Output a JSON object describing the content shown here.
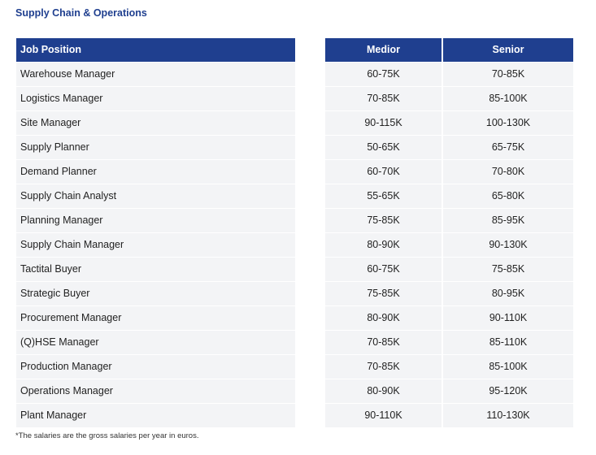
{
  "title": "Supply Chain & Operations",
  "columns": {
    "position": "Job Position",
    "medior": "Medior",
    "senior": "Senior"
  },
  "rows": [
    {
      "position": "Warehouse Manager",
      "medior": "60-75K",
      "senior": "70-85K"
    },
    {
      "position": "Logistics Manager",
      "medior": "70-85K",
      "senior": "85-100K"
    },
    {
      "position": "Site Manager",
      "medior": "90-115K",
      "senior": "100-130K"
    },
    {
      "position": "Supply Planner",
      "medior": "50-65K",
      "senior": "65-75K"
    },
    {
      "position": "Demand Planner",
      "medior": "60-70K",
      "senior": "70-80K"
    },
    {
      "position": "Supply Chain Analyst",
      "medior": "55-65K",
      "senior": "65-80K"
    },
    {
      "position": "Planning Manager",
      "medior": "75-85K",
      "senior": "85-95K"
    },
    {
      "position": "Supply Chain Manager",
      "medior": "80-90K",
      "senior": "90-130K"
    },
    {
      "position": "Tactital Buyer",
      "medior": "60-75K",
      "senior": "75-85K"
    },
    {
      "position": "Strategic Buyer",
      "medior": "75-85K",
      "senior": "80-95K"
    },
    {
      "position": "Procurement Manager",
      "medior": "80-90K",
      "senior": "90-110K"
    },
    {
      "position": "(Q)HSE Manager",
      "medior": "70-85K",
      "senior": "85-110K"
    },
    {
      "position": "Production Manager",
      "medior": "70-85K",
      "senior": "85-100K"
    },
    {
      "position": "Operations Manager",
      "medior": "80-90K",
      "senior": "95-120K"
    },
    {
      "position": "Plant Manager",
      "medior": "90-110K",
      "senior": "110-130K"
    }
  ],
  "footnote": "*The salaries are the gross salaries per year in euros.",
  "colors": {
    "header_bg": "#1f3f8f",
    "row_bg": "#f3f4f6",
    "title": "#1f3f8f"
  }
}
